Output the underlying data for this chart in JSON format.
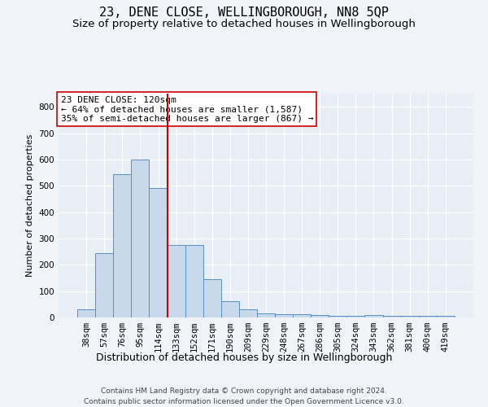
{
  "title": "23, DENE CLOSE, WELLINGBOROUGH, NN8 5QP",
  "subtitle": "Size of property relative to detached houses in Wellingborough",
  "xlabel": "Distribution of detached houses by size in Wellingborough",
  "ylabel": "Number of detached properties",
  "categories": [
    "38sqm",
    "57sqm",
    "76sqm",
    "95sqm",
    "114sqm",
    "133sqm",
    "152sqm",
    "171sqm",
    "190sqm",
    "209sqm",
    "229sqm",
    "248sqm",
    "267sqm",
    "286sqm",
    "305sqm",
    "324sqm",
    "343sqm",
    "362sqm",
    "381sqm",
    "400sqm",
    "419sqm"
  ],
  "values": [
    30,
    245,
    545,
    600,
    490,
    275,
    275,
    145,
    62,
    30,
    17,
    13,
    13,
    8,
    5,
    5,
    8,
    5,
    5,
    5,
    5
  ],
  "bar_color": "#c9d9ec",
  "bar_edge_color": "#5a8fc3",
  "vline_color": "#cc0000",
  "vline_bar_index": 4,
  "annotation_line1": "23 DENE CLOSE: 120sqm",
  "annotation_line2": "← 64% of detached houses are smaller (1,587)",
  "annotation_line3": "35% of semi-detached houses are larger (867) →",
  "annotation_box_facecolor": "#ffffff",
  "annotation_box_edgecolor": "#cc0000",
  "ylim": [
    0,
    850
  ],
  "yticks": [
    0,
    100,
    200,
    300,
    400,
    500,
    600,
    700,
    800
  ],
  "plot_bg_color": "#e8eef5",
  "fig_bg_color": "#f0f4f8",
  "grid_color": "#ffffff",
  "footer_line1": "Contains HM Land Registry data © Crown copyright and database right 2024.",
  "footer_line2": "Contains public sector information licensed under the Open Government Licence v3.0.",
  "title_fontsize": 11,
  "subtitle_fontsize": 9.5,
  "xlabel_fontsize": 9,
  "ylabel_fontsize": 8,
  "tick_fontsize": 7.5,
  "annotation_fontsize": 8,
  "footer_fontsize": 6.5
}
